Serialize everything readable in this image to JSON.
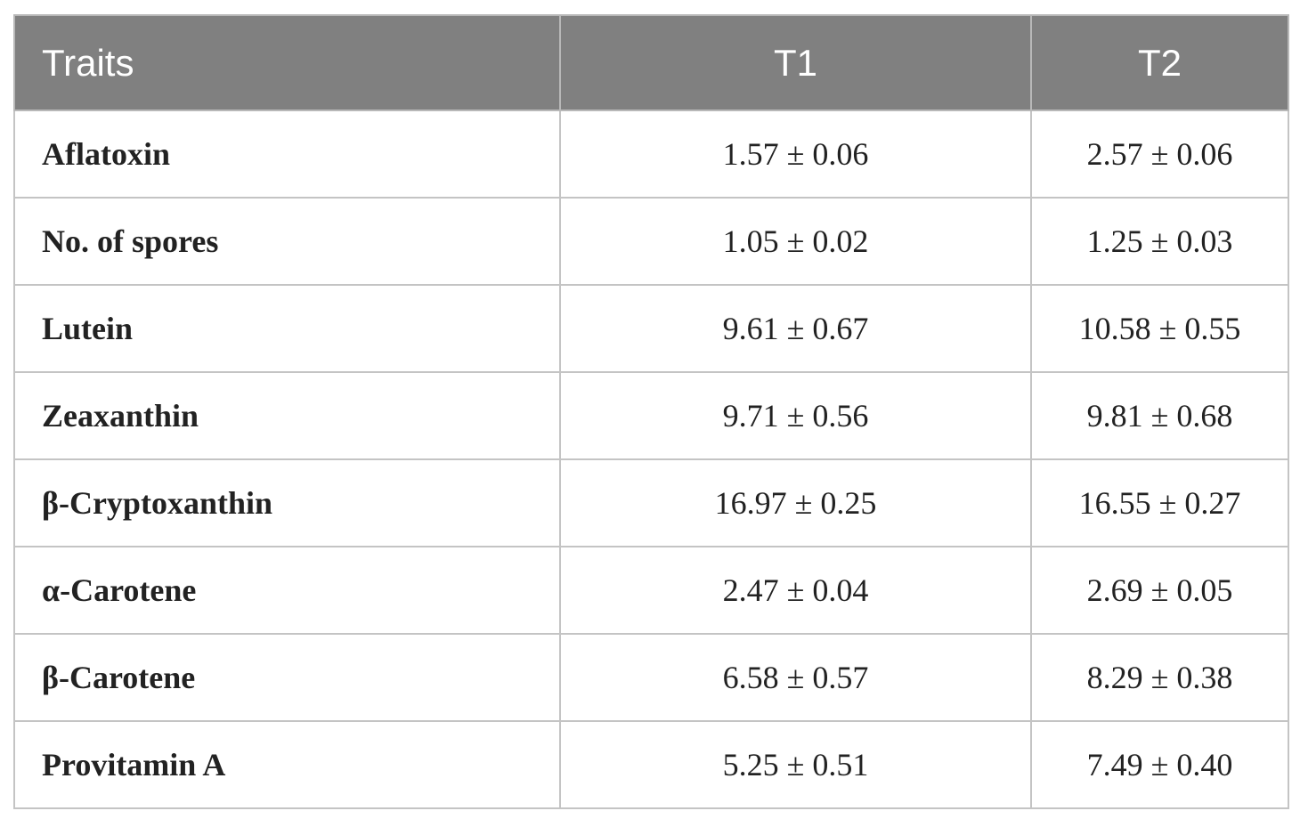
{
  "table": {
    "header": [
      "Traits",
      "T1",
      "T2"
    ],
    "rows": [
      [
        "Aflatoxin",
        "1.57 ± 0.06",
        "2.57 ± 0.06"
      ],
      [
        "No. of spores",
        "1.05 ± 0.02",
        "1.25 ± 0.03"
      ],
      [
        "Lutein",
        "9.61 ± 0.67",
        "10.58 ± 0.55"
      ],
      [
        "Zeaxanthin",
        "9.71 ± 0.56",
        "9.81 ± 0.68"
      ],
      [
        "β-Cryptoxanthin",
        "16.97 ± 0.25",
        "16.55 ± 0.27"
      ],
      [
        "α-Carotene",
        "2.47 ± 0.04",
        "2.69 ± 0.05"
      ],
      [
        "β-Carotene",
        "6.58 ± 0.57",
        "8.29 ± 0.38"
      ],
      [
        "Provitamin A",
        "5.25 ± 0.51",
        "7.49 ± 0.40"
      ]
    ]
  }
}
